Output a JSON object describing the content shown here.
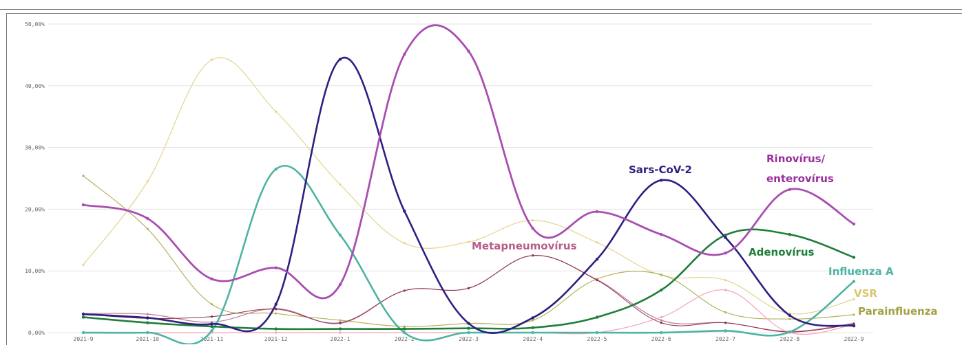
{
  "chart_data": {
    "type": "line",
    "x": [
      "2021-9",
      "2021-10",
      "2021-11",
      "2021-12",
      "2022-1",
      "2022-2",
      "2022-3",
      "2022-4",
      "2022-5",
      "2022-6",
      "2022-7",
      "2022-8",
      "2022-9"
    ],
    "yticks": [
      "0,00%",
      "10,00%",
      "20,00%",
      "30,00%",
      "40,00%",
      "50,00%"
    ],
    "ylim": [
      0,
      50
    ],
    "grid": true,
    "series": [
      {
        "name": "VSR",
        "color": "#e3d48e",
        "width": 1.2,
        "values": [
          11.0,
          24.5,
          44.2,
          35.8,
          24.0,
          14.5,
          14.7,
          18.2,
          14.6,
          9.3,
          8.5,
          3.1,
          5.4
        ]
      },
      {
        "name": "Parainfluenza",
        "color": "#b6b25a",
        "width": 1.2,
        "values": [
          25.4,
          16.8,
          4.6,
          3.1,
          2.0,
          1.0,
          1.5,
          2.0,
          8.7,
          9.4,
          3.3,
          2.2,
          2.9
        ]
      },
      {
        "name": "Metapneumovírus",
        "color": "#c07b9a",
        "width": 1.2,
        "values": [
          3.1,
          3.0,
          1.7,
          3.9,
          1.5,
          6.8,
          7.2,
          12.5,
          8.6,
          2.0,
          1.6,
          0.2,
          1.5
        ]
      },
      {
        "name": "",
        "color": "#f4a3b6",
        "width": 1.2,
        "values": [
          0.0,
          0.0,
          0.0,
          0.0,
          0.0,
          0.0,
          0.0,
          0.0,
          0.0,
          2.5,
          6.9,
          0.0,
          1.3
        ]
      },
      {
        "name": "",
        "color": "#8b2f4f",
        "width": 1.0,
        "values": [
          3.0,
          2.3,
          2.6,
          3.8,
          1.6,
          6.8,
          7.2,
          12.5,
          8.5,
          1.6,
          1.6,
          0.1,
          1.4
        ]
      },
      {
        "name": "Influenza A",
        "color": "#4db3a3",
        "width": 2.6,
        "values": [
          0.0,
          0.0,
          0.3,
          26.5,
          15.8,
          0.0,
          0.0,
          0.0,
          0.0,
          0.0,
          0.3,
          0.1,
          8.3
        ]
      },
      {
        "name": "Adenovírus",
        "color": "#1f7f3a",
        "width": 2.6,
        "values": [
          2.5,
          1.6,
          1.0,
          0.6,
          0.6,
          0.6,
          0.7,
          0.8,
          2.5,
          6.9,
          15.8,
          15.9,
          12.2
        ]
      },
      {
        "name": "Sars-CoV-2",
        "color": "#2c2080",
        "width": 2.6,
        "values": [
          3.0,
          2.4,
          1.4,
          4.6,
          44.3,
          19.7,
          1.5,
          2.4,
          11.9,
          24.7,
          15.4,
          2.8,
          1.1
        ]
      },
      {
        "name": "Rinovírus/ enterovírus",
        "color": "#a84eb0",
        "width": 2.8,
        "values": [
          20.7,
          18.5,
          8.7,
          10.5,
          7.8,
          45.1,
          45.6,
          16.9,
          19.6,
          15.9,
          12.9,
          23.2,
          17.6
        ]
      }
    ],
    "annotations": [
      {
        "text": "Rinovírus/",
        "color": "#9a2f9e"
      },
      {
        "text": "enterovírus",
        "color": "#9a2f9e"
      },
      {
        "text": "Sars-CoV-2",
        "color": "#2c2080"
      },
      {
        "text": "Metapneumovírus",
        "color": "#b75d8b"
      },
      {
        "text": "Adenovírus",
        "color": "#1f7f3a"
      },
      {
        "text": "Influenza A",
        "color": "#4db3a3"
      },
      {
        "text": "VSR",
        "color": "#d7c46b"
      },
      {
        "text": "Parainfluenza",
        "color": "#a3a146"
      }
    ]
  }
}
